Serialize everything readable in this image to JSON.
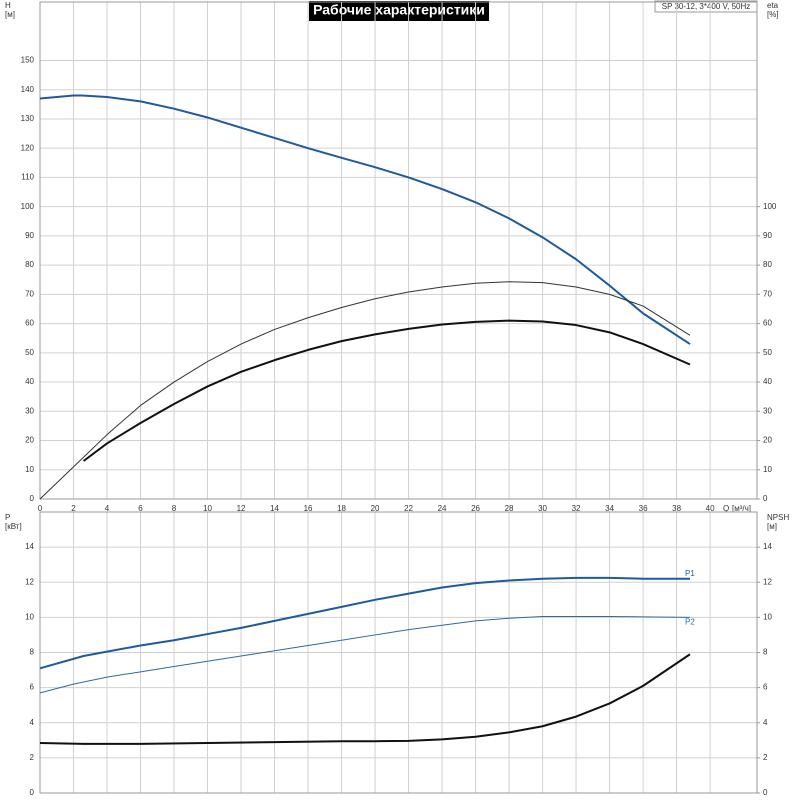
{
  "chart_data": [
    {
      "type": "line",
      "title": "Рабочие характеристики",
      "subtitle": "SP 30-12, 3*400 V, 50Hz",
      "y_label": "H",
      "y_unit": "[м]",
      "y2_label": "eta",
      "y2_unit": "[%]",
      "x_label": "Q",
      "x_unit": "[м³/ч]",
      "xlim": [
        0,
        42.8
      ],
      "xticks": [
        0,
        2,
        4,
        6,
        8,
        10,
        12,
        14,
        16,
        18,
        20,
        22,
        24,
        26,
        28,
        30,
        32,
        34,
        36,
        38,
        40
      ],
      "ylim": [
        0,
        170
      ],
      "yticks": [
        0,
        10,
        20,
        30,
        40,
        50,
        60,
        70,
        80,
        90,
        100,
        110,
        120,
        130,
        140,
        150
      ],
      "y2lim": [
        0,
        170
      ],
      "y2ticks": [
        0,
        10,
        20,
        30,
        40,
        50,
        60,
        70,
        80,
        90,
        100
      ],
      "grid": true,
      "series": [
        {
          "color": "#1f5a9a",
          "width": 2,
          "x": [
            0,
            2,
            2.5,
            4,
            6,
            8,
            10,
            12,
            14,
            16,
            18,
            20,
            22,
            24,
            26,
            28,
            30,
            32,
            34,
            36,
            38.8
          ],
          "values": [
            137,
            138,
            138,
            137.5,
            136,
            133.5,
            130.5,
            127,
            123.5,
            120,
            116.7,
            113.5,
            110,
            106,
            101.5,
            96,
            89.5,
            82,
            73,
            63.5,
            53
          ]
        },
        {
          "color": "#333333",
          "width": 1,
          "axis": "y2",
          "x": [
            0,
            2,
            4,
            6,
            8,
            10,
            12,
            14,
            16,
            18,
            20,
            22,
            24,
            26,
            28,
            30,
            32,
            34,
            36,
            38.8
          ],
          "values": [
            0,
            11,
            22,
            32,
            40,
            47,
            53,
            58,
            62,
            65.5,
            68.5,
            70.8,
            72.5,
            73.8,
            74.3,
            74,
            72.5,
            70,
            66,
            56
          ]
        },
        {
          "color": "#111111",
          "width": 2,
          "axis": "y2",
          "x": [
            2.6,
            4,
            6,
            8,
            10,
            12,
            14,
            16,
            18,
            20,
            22,
            24,
            26,
            28,
            30,
            32,
            34,
            36,
            38.8
          ],
          "values": [
            13,
            19,
            26,
            32.5,
            38.5,
            43.5,
            47.5,
            51,
            54,
            56.3,
            58.2,
            59.7,
            60.6,
            61,
            60.7,
            59.5,
            57,
            53,
            46
          ]
        }
      ]
    },
    {
      "type": "line",
      "y_label": "P",
      "y_unit": "[кВт]",
      "y2_label": "NPSH",
      "y2_unit": "[м]",
      "xlim": [
        0,
        42.8
      ],
      "ylim": [
        0,
        16
      ],
      "yticks": [
        0,
        2,
        4,
        6,
        8,
        10,
        12,
        14
      ],
      "y2lim": [
        0,
        16
      ],
      "y2ticks": [
        0,
        2,
        4,
        6,
        8,
        10,
        12,
        14
      ],
      "grid": true,
      "series": [
        {
          "name": "P1",
          "color": "#1f5a9a",
          "width": 2,
          "x": [
            0,
            2.6,
            4,
            6,
            8,
            10,
            12,
            14,
            16,
            18,
            20,
            22,
            24,
            26,
            28,
            30,
            32,
            34,
            36,
            38.8
          ],
          "values": [
            7.1,
            7.8,
            8.05,
            8.4,
            8.7,
            9.05,
            9.4,
            9.8,
            10.2,
            10.6,
            11.0,
            11.35,
            11.7,
            11.95,
            12.1,
            12.2,
            12.25,
            12.25,
            12.2,
            12.2
          ]
        },
        {
          "name": "P2",
          "color": "#2d6aa8",
          "width": 1,
          "x": [
            0,
            2,
            4,
            6,
            8,
            10,
            12,
            14,
            16,
            18,
            20,
            22,
            24,
            26,
            28,
            30,
            32,
            34,
            36,
            38.8
          ],
          "values": [
            5.7,
            6.2,
            6.6,
            6.9,
            7.2,
            7.5,
            7.8,
            8.1,
            8.4,
            8.7,
            9.0,
            9.3,
            9.55,
            9.8,
            9.95,
            10.05,
            10.05,
            10.05,
            10.03,
            10.0
          ]
        },
        {
          "color": "#111111",
          "width": 2,
          "axis": "y2",
          "x": [
            0,
            2.6,
            6,
            10,
            14,
            18,
            20,
            22,
            24,
            26,
            28,
            30,
            32,
            34,
            36,
            38.8
          ],
          "values": [
            2.85,
            2.8,
            2.8,
            2.85,
            2.9,
            2.95,
            2.95,
            2.97,
            3.05,
            3.2,
            3.45,
            3.8,
            4.35,
            5.1,
            6.1,
            7.9
          ]
        }
      ]
    }
  ]
}
